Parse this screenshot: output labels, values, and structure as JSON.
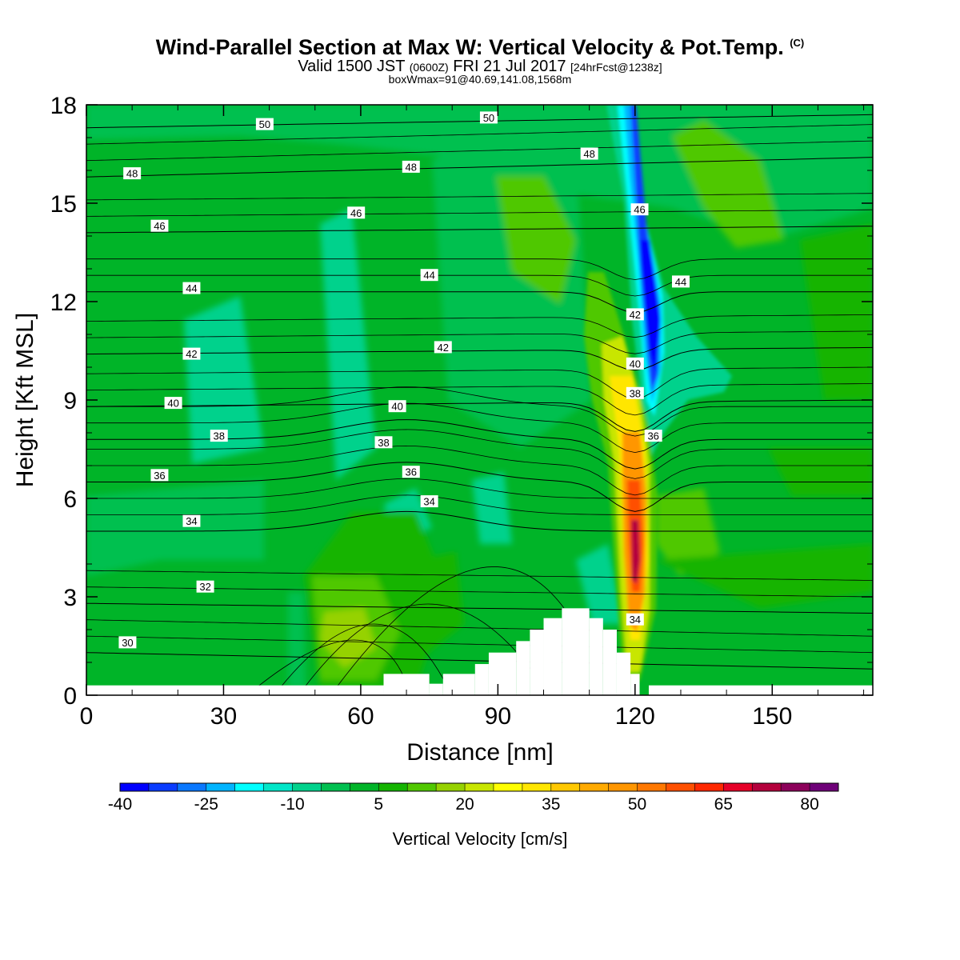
{
  "header": {
    "title": "Wind-Parallel Section at Max W: Vertical Velocity & Pot.Temp.",
    "title_mark": "(C)",
    "valid_prefix": "Valid 1500 JST",
    "valid_utc": "(0600Z)",
    "valid_date": "FRI 21 Jul 2017",
    "forecast": "[24hrFcst@1238z]",
    "box_info": "boxWmax=91@40.69,141.08,1568m"
  },
  "chart_data": {
    "type": "heatmap",
    "subtype": "vertical cross-section with filled vertical-velocity contours and potential-temperature contour lines",
    "xlabel": "Distance [nm]",
    "ylabel": "Height [Kft MSL]",
    "xlim": [
      0,
      172
    ],
    "ylim": [
      0,
      18
    ],
    "xticks": [
      0,
      30,
      60,
      90,
      120,
      150
    ],
    "yticks": [
      0,
      3,
      6,
      9,
      12,
      15,
      18
    ],
    "colorbar": {
      "label": "Vertical Velocity [cm/s]",
      "tick_labels": [
        "-40",
        "-25",
        "-10",
        "5",
        "20",
        "35",
        "50",
        "65",
        "80"
      ],
      "tick_values": [
        -40,
        -25,
        -10,
        5,
        20,
        35,
        50,
        65,
        80
      ],
      "levels": [
        -40,
        -35,
        -30,
        -25,
        -20,
        -15,
        -10,
        -5,
        0,
        5,
        10,
        15,
        20,
        25,
        30,
        35,
        40,
        45,
        50,
        55,
        60,
        65,
        70,
        75,
        80,
        85
      ],
      "colors": [
        "#0000ff",
        "#0a3cff",
        "#0a78ff",
        "#00b4ff",
        "#00ffff",
        "#00e6c8",
        "#00d28c",
        "#00c050",
        "#00b428",
        "#14b400",
        "#50c800",
        "#96d200",
        "#c8e600",
        "#ffff00",
        "#ffe600",
        "#ffc800",
        "#ffaa00",
        "#ff9600",
        "#ff7800",
        "#ff5000",
        "#ff2800",
        "#e60028",
        "#b4003c",
        "#8c005a",
        "#6e0078"
      ]
    },
    "theta_contours": [
      {
        "level": 30,
        "y_left": 1.3,
        "y_right": 0.8
      },
      {
        "level": 32,
        "y_left": 2.8,
        "y_right": 2.5
      },
      {
        "level": 34,
        "y_left": 5.0,
        "y_right": 5.0
      },
      {
        "level": 36,
        "y_left": 6.5,
        "y_right": 6.5
      },
      {
        "level": 38,
        "y_left": 7.8,
        "y_right": 7.8
      },
      {
        "level": 40,
        "y_left": 8.8,
        "y_right": 9.0
      },
      {
        "level": 42,
        "y_left": 10.4,
        "y_right": 10.6
      },
      {
        "level": 44,
        "y_left": 12.3,
        "y_right": 12.3
      },
      {
        "level": 46,
        "y_left": 14.1,
        "y_right": 14.3
      },
      {
        "level": 48,
        "y_left": 15.8,
        "y_right": 16.4
      },
      {
        "level": 50,
        "y_left": 17.3,
        "y_right": 17.7
      }
    ],
    "contour_labels": [
      {
        "text": "50",
        "x": 39,
        "y": 17.4
      },
      {
        "text": "50",
        "x": 88,
        "y": 17.6
      },
      {
        "text": "48",
        "x": 10,
        "y": 15.9
      },
      {
        "text": "48",
        "x": 71,
        "y": 16.1
      },
      {
        "text": "48",
        "x": 110,
        "y": 16.5
      },
      {
        "text": "46",
        "x": 16,
        "y": 14.3
      },
      {
        "text": "46",
        "x": 59,
        "y": 14.7
      },
      {
        "text": "46",
        "x": 121,
        "y": 14.8
      },
      {
        "text": "44",
        "x": 23,
        "y": 12.4
      },
      {
        "text": "44",
        "x": 75,
        "y": 12.8
      },
      {
        "text": "44",
        "x": 130,
        "y": 12.6
      },
      {
        "text": "42",
        "x": 23,
        "y": 10.4
      },
      {
        "text": "42",
        "x": 78,
        "y": 10.6
      },
      {
        "text": "42",
        "x": 120,
        "y": 11.6
      },
      {
        "text": "40",
        "x": 19,
        "y": 8.9
      },
      {
        "text": "40",
        "x": 68,
        "y": 8.8
      },
      {
        "text": "40",
        "x": 120,
        "y": 10.1
      },
      {
        "text": "38",
        "x": 29,
        "y": 7.9
      },
      {
        "text": "38",
        "x": 65,
        "y": 7.7
      },
      {
        "text": "38",
        "x": 120,
        "y": 9.2
      },
      {
        "text": "36",
        "x": 16,
        "y": 6.7
      },
      {
        "text": "36",
        "x": 71,
        "y": 6.8
      },
      {
        "text": "36",
        "x": 124,
        "y": 7.9
      },
      {
        "text": "34",
        "x": 23,
        "y": 5.3
      },
      {
        "text": "34",
        "x": 75,
        "y": 5.9
      },
      {
        "text": "34",
        "x": 120,
        "y": 2.3
      },
      {
        "text": "32",
        "x": 26,
        "y": 3.3
      },
      {
        "text": "30",
        "x": 9,
        "y": 1.6
      }
    ],
    "terrain_blocks": [
      [
        0,
        0,
        0.3
      ],
      [
        65,
        0,
        0.65
      ],
      [
        75,
        0,
        0.35
      ],
      [
        78,
        0,
        0.65
      ],
      [
        85,
        0,
        0.95
      ],
      [
        88,
        0,
        1.3
      ],
      [
        94,
        0,
        1.65
      ],
      [
        97,
        0,
        2.0
      ],
      [
        100,
        0,
        2.35
      ],
      [
        104,
        0,
        2.65
      ],
      [
        110,
        0,
        2.35
      ],
      [
        113,
        0,
        2.0
      ],
      [
        116,
        0,
        1.3
      ],
      [
        119,
        0,
        0.65
      ],
      [
        121,
        0,
        0
      ],
      [
        123,
        0,
        0.3
      ]
    ]
  }
}
